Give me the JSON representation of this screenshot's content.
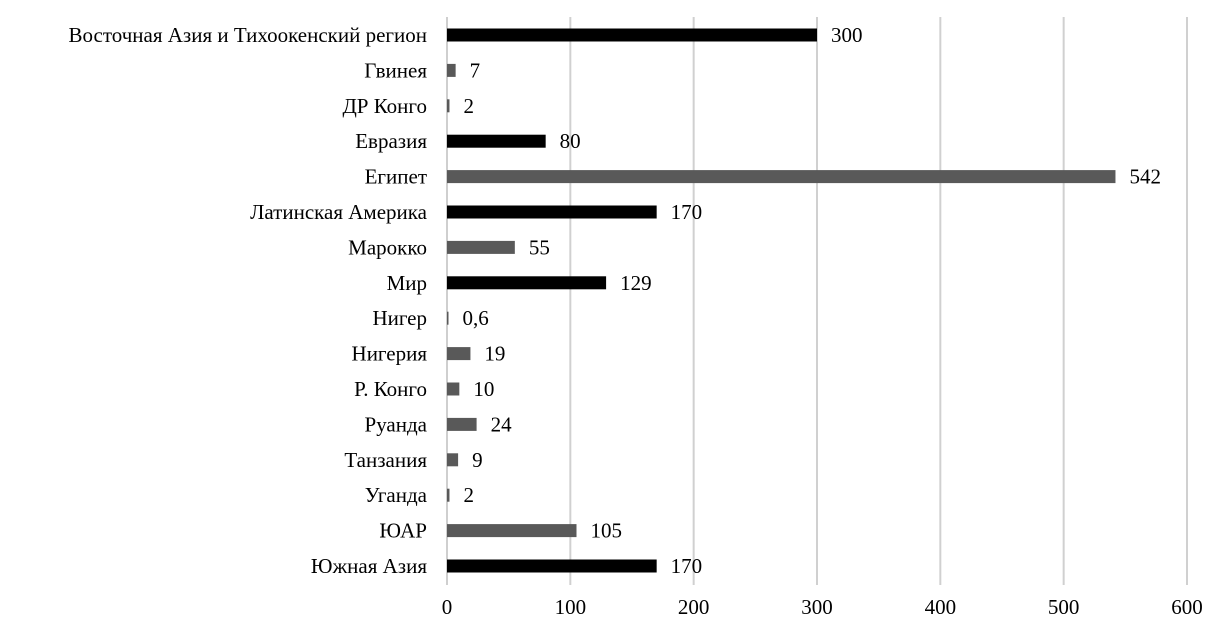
{
  "chart_data": {
    "type": "bar",
    "orientation": "horizontal",
    "categories": [
      "Восточная Азия и Тихоокенский регион",
      "Гвинея",
      "ДР Конго",
      "Евразия",
      "Египет",
      "Латинская Америка",
      "Марокко",
      "Мир",
      "Нигер",
      "Нигерия",
      "Р. Конго",
      "Руанда",
      "Танзания",
      "Уганда",
      "ЮАР",
      "Южная Азия"
    ],
    "values": [
      300,
      7,
      2,
      80,
      542,
      170,
      55,
      129,
      0.6,
      19,
      10,
      24,
      9,
      2,
      105,
      170
    ],
    "value_labels": [
      "300",
      "7",
      "2",
      "80",
      "542",
      "170",
      "55",
      "129",
      "0,6",
      "19",
      "10",
      "24",
      "9",
      "2",
      "105",
      "170"
    ],
    "bar_colors": [
      "#000000",
      "#595959",
      "#595959",
      "#000000",
      "#595959",
      "#000000",
      "#595959",
      "#000000",
      "#595959",
      "#595959",
      "#595959",
      "#595959",
      "#595959",
      "#595959",
      "#595959",
      "#000000"
    ],
    "xlim": [
      0,
      600
    ],
    "xticks": [
      0,
      100,
      200,
      300,
      400,
      500,
      600
    ],
    "title": "",
    "xlabel": "",
    "ylabel": "",
    "grid": "vertical",
    "legend": "none"
  }
}
